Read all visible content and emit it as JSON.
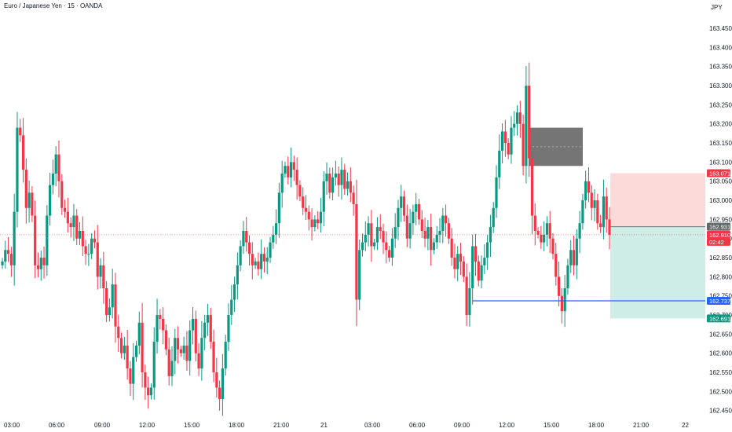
{
  "title": "Euro / Japanese Yen · 15 · OANDA",
  "currency": "JPY",
  "colors": {
    "up": "#089981",
    "down": "#f23645",
    "price_line": "#f23645",
    "horizontal_line": "#2962ff",
    "stop_zone": "#fcd6d6",
    "target_zone": "#c9ebe4",
    "block": "#5d5d5d"
  },
  "chart_data": {
    "type": "candlestick",
    "title": "Euro / Japanese Yen · 15 · OANDA",
    "x_tick_labels": [
      "03:00",
      "06:00",
      "09:00",
      "12:00",
      "15:00",
      "18:00",
      "21:00",
      "21",
      "03:00",
      "06:00",
      "09:00",
      "12:00",
      "15:00",
      "18:00",
      "21:00",
      "22"
    ],
    "y_tick_labels": [
      "163.450",
      "163.400",
      "163.350",
      "163.300",
      "163.250",
      "163.200",
      "163.150",
      "163.100",
      "163.050",
      "163.000",
      "162.950",
      "162.900",
      "162.850",
      "162.800",
      "162.750",
      "162.700",
      "162.650",
      "162.600",
      "162.550",
      "162.500",
      "162.450"
    ],
    "ylim": [
      162.435,
      163.483
    ],
    "grid": false,
    "candles_close": [
      162.84,
      162.87,
      162.86,
      162.83,
      162.97,
      163.19,
      163.17,
      163.08,
      162.98,
      163.02,
      162.96,
      162.83,
      162.82,
      162.85,
      162.83,
      162.96,
      163.04,
      163.07,
      163.12,
      163.05,
      162.98,
      162.97,
      162.94,
      162.93,
      162.96,
      162.9,
      162.92,
      162.88,
      162.86,
      162.86,
      162.9,
      162.89,
      162.8,
      162.83,
      162.77,
      162.7,
      162.72,
      162.78,
      162.67,
      162.64,
      162.6,
      162.62,
      162.56,
      162.52,
      162.59,
      162.62,
      162.68,
      162.55,
      162.51,
      162.49,
      162.51,
      162.63,
      162.7,
      162.69,
      162.66,
      162.61,
      162.54,
      162.58,
      162.64,
      162.61,
      162.6,
      162.62,
      162.58,
      162.66,
      162.69,
      162.6,
      162.56,
      162.64,
      162.68,
      162.7,
      162.63,
      162.55,
      162.51,
      162.48,
      162.56,
      162.63,
      162.7,
      162.74,
      162.78,
      162.83,
      162.88,
      162.92,
      162.89,
      162.86,
      162.83,
      162.84,
      162.82,
      162.86,
      162.84,
      162.85,
      162.89,
      162.91,
      162.94,
      163.02,
      163.07,
      163.09,
      163.06,
      163.1,
      163.08,
      163.04,
      163.01,
      162.98,
      162.97,
      162.95,
      162.93,
      162.95,
      162.94,
      162.97,
      163.05,
      163.07,
      163.02,
      163.06,
      163.07,
      163.04,
      163.08,
      163.03,
      163.05,
      163.02,
      162.99,
      162.74,
      162.87,
      162.89,
      162.91,
      162.94,
      162.88,
      162.89,
      162.93,
      162.92,
      162.89,
      162.87,
      162.85,
      162.9,
      162.93,
      162.98,
      163.01,
      162.96,
      162.9,
      162.94,
      162.97,
      162.99,
      162.95,
      162.92,
      162.9,
      162.93,
      162.87,
      162.89,
      162.91,
      162.92,
      162.96,
      162.94,
      162.9,
      162.85,
      162.82,
      162.86,
      162.84,
      162.8,
      162.7,
      162.77,
      162.88,
      162.84,
      162.79,
      162.83,
      162.85,
      162.89,
      162.93,
      162.98,
      163.06,
      163.13,
      163.18,
      163.15,
      163.12,
      163.19,
      163.2,
      163.23,
      163.2,
      163.09,
      163.3,
      163.11,
      162.96,
      162.92,
      162.91,
      162.89,
      162.91,
      162.94,
      162.9,
      162.86,
      162.8,
      162.75,
      162.71,
      162.77,
      162.83,
      162.87,
      162.83,
      162.9,
      162.94,
      163.0,
      163.05,
      163.02,
      162.98,
      163.0,
      162.94,
      162.93,
      163.01,
      162.95,
      162.91
    ],
    "price_badges": [
      {
        "value": "163.071",
        "role": "stop"
      },
      {
        "value": "162.931",
        "role": "position"
      },
      {
        "value": "162.910",
        "role": "current"
      },
      {
        "value": "02:42",
        "role": "countdown"
      },
      {
        "value": "162.737",
        "role": "line"
      },
      {
        "value": "162.691",
        "role": "target"
      }
    ],
    "annotations": [
      {
        "type": "rectangle",
        "price_top": 163.19,
        "price_bottom": 163.09,
        "style": "dark-block-with-dotted-midline"
      },
      {
        "type": "horizontal_line",
        "price": 162.737
      },
      {
        "type": "long_position",
        "entry": 162.931,
        "stop": 163.071,
        "target": 162.691
      }
    ]
  }
}
